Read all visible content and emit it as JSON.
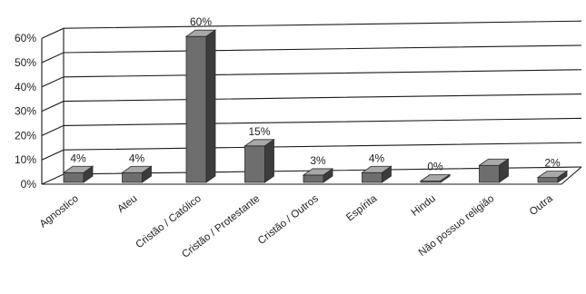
{
  "chart_data": {
    "type": "bar",
    "style": "3d",
    "grid": true,
    "legend": "none",
    "categories": [
      "Agnostico",
      "Ateu",
      "Cristão / Católico",
      "Cristão / Protestante",
      "Cristão / Outros",
      "Espírita",
      "Hindu",
      "Não possuo religião",
      "Outra"
    ],
    "values": [
      4,
      4,
      60,
      15,
      3,
      4,
      0,
      7,
      2
    ],
    "data_labels": [
      "4%",
      "4%",
      "60%",
      "15%",
      "3%",
      "4%",
      "0%",
      "",
      "2%"
    ],
    "ylim": [
      0,
      60
    ],
    "yticks": [
      0,
      10,
      20,
      30,
      40,
      50,
      60
    ],
    "ytick_labels": [
      "0%",
      "10%",
      "20%",
      "30%",
      "40%",
      "50%",
      "60%"
    ],
    "colors": {
      "bar_front": "#6e6e6e",
      "bar_top": "#a8a8a8",
      "bar_side": "#3c3c3c",
      "grid": "#1a1a1a"
    }
  }
}
